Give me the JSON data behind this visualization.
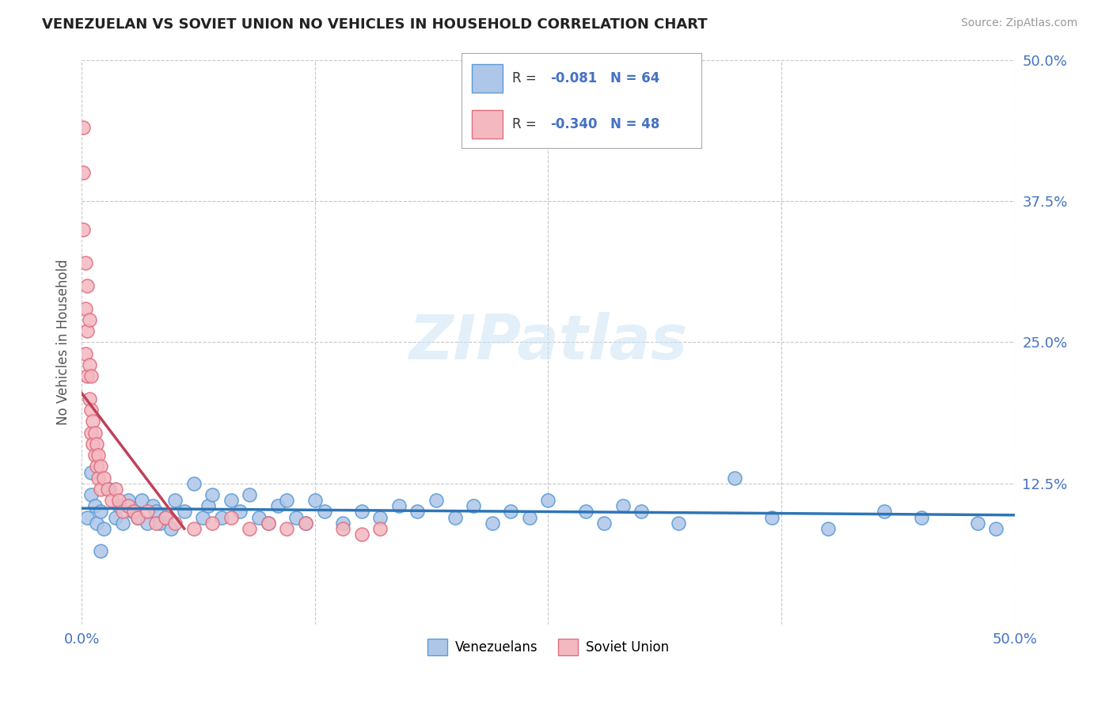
{
  "title": "VENEZUELAN VS SOVIET UNION NO VEHICLES IN HOUSEHOLD CORRELATION CHART",
  "source": "Source: ZipAtlas.com",
  "ylabel": "No Vehicles in Household",
  "xlim": [
    0.0,
    0.5
  ],
  "ylim": [
    0.0,
    0.5
  ],
  "xtick_positions": [
    0.0,
    0.125,
    0.25,
    0.375,
    0.5
  ],
  "xtick_labels": [
    "0.0%",
    "",
    "",
    "",
    "50.0%"
  ],
  "ytick_positions": [
    0.125,
    0.25,
    0.375,
    0.5
  ],
  "ytick_labels": [
    "12.5%",
    "25.0%",
    "37.5%",
    "50.0%"
  ],
  "venezuelan_color": "#aec6e8",
  "venezuelan_edge_color": "#5b9bd5",
  "soviet_color": "#f4b8c1",
  "soviet_edge_color": "#e07080",
  "trend_venezuelan_color": "#2e75b6",
  "trend_soviet_color": "#c0405a",
  "legend_venezuelan_label": "Venezuelans",
  "legend_soviet_label": "Soviet Union",
  "r_venezuelan": -0.081,
  "n_venezuelan": 64,
  "r_soviet": -0.34,
  "n_soviet": 48,
  "background_color": "#ffffff",
  "grid_color": "#c8c8c8",
  "tick_color": "#4472c4",
  "venezuelan_x": [
    0.003,
    0.005,
    0.007,
    0.008,
    0.01,
    0.012,
    0.015,
    0.018,
    0.02,
    0.022,
    0.025,
    0.027,
    0.03,
    0.032,
    0.035,
    0.038,
    0.04,
    0.042,
    0.045,
    0.048,
    0.05,
    0.055,
    0.06,
    0.065,
    0.068,
    0.07,
    0.075,
    0.08,
    0.085,
    0.09,
    0.095,
    0.1,
    0.105,
    0.11,
    0.115,
    0.12,
    0.125,
    0.13,
    0.14,
    0.15,
    0.16,
    0.17,
    0.18,
    0.19,
    0.2,
    0.21,
    0.22,
    0.23,
    0.24,
    0.25,
    0.27,
    0.28,
    0.29,
    0.3,
    0.32,
    0.35,
    0.37,
    0.4,
    0.43,
    0.45,
    0.48,
    0.49,
    0.005,
    0.01
  ],
  "venezuelan_y": [
    0.095,
    0.115,
    0.105,
    0.09,
    0.1,
    0.085,
    0.12,
    0.095,
    0.105,
    0.09,
    0.11,
    0.1,
    0.095,
    0.11,
    0.09,
    0.105,
    0.1,
    0.09,
    0.095,
    0.085,
    0.11,
    0.1,
    0.125,
    0.095,
    0.105,
    0.115,
    0.095,
    0.11,
    0.1,
    0.115,
    0.095,
    0.09,
    0.105,
    0.11,
    0.095,
    0.09,
    0.11,
    0.1,
    0.09,
    0.1,
    0.095,
    0.105,
    0.1,
    0.11,
    0.095,
    0.105,
    0.09,
    0.1,
    0.095,
    0.11,
    0.1,
    0.09,
    0.105,
    0.1,
    0.09,
    0.13,
    0.095,
    0.085,
    0.1,
    0.095,
    0.09,
    0.085,
    0.135,
    0.065
  ],
  "soviet_x": [
    0.001,
    0.001,
    0.001,
    0.002,
    0.002,
    0.002,
    0.003,
    0.003,
    0.003,
    0.004,
    0.004,
    0.004,
    0.005,
    0.005,
    0.005,
    0.006,
    0.006,
    0.007,
    0.007,
    0.008,
    0.008,
    0.009,
    0.009,
    0.01,
    0.01,
    0.012,
    0.014,
    0.016,
    0.018,
    0.02,
    0.022,
    0.025,
    0.028,
    0.03,
    0.035,
    0.04,
    0.045,
    0.05,
    0.06,
    0.07,
    0.08,
    0.09,
    0.1,
    0.11,
    0.12,
    0.14,
    0.15,
    0.16
  ],
  "soviet_y": [
    0.44,
    0.4,
    0.35,
    0.32,
    0.28,
    0.24,
    0.3,
    0.26,
    0.22,
    0.27,
    0.23,
    0.2,
    0.22,
    0.19,
    0.17,
    0.18,
    0.16,
    0.17,
    0.15,
    0.16,
    0.14,
    0.15,
    0.13,
    0.14,
    0.12,
    0.13,
    0.12,
    0.11,
    0.12,
    0.11,
    0.1,
    0.105,
    0.1,
    0.095,
    0.1,
    0.09,
    0.095,
    0.09,
    0.085,
    0.09,
    0.095,
    0.085,
    0.09,
    0.085,
    0.09,
    0.085,
    0.08,
    0.085
  ],
  "trend_v_x0": 0.0,
  "trend_v_x1": 0.5,
  "trend_v_y0": 0.103,
  "trend_v_y1": 0.097,
  "trend_s_x0": 0.0,
  "trend_s_x1": 0.055,
  "trend_s_y0": 0.205,
  "trend_s_y1": 0.085
}
